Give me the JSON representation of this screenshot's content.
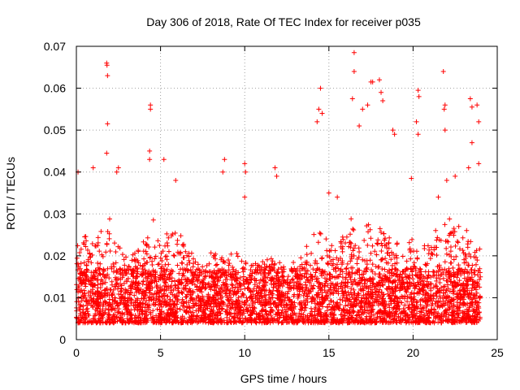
{
  "chart_data": {
    "type": "scatter",
    "title": "Day 306 of 2018, Rate Of TEC Index for receiver p035",
    "xlabel": "GPS time / hours",
    "ylabel": "ROTI / TECUs",
    "xlim": [
      0,
      25
    ],
    "ylim": [
      0,
      0.07
    ],
    "xticks": [
      0,
      5,
      10,
      15,
      20,
      25
    ],
    "yticks": [
      0,
      0.01,
      0.02,
      0.03,
      0.04,
      0.05,
      0.06,
      0.07
    ],
    "grid": true,
    "marker": "+",
    "color": "#ff0000",
    "series": [
      {
        "values_note": "",
        "points": [
          [
            1.8,
            0.066
          ],
          [
            1.82,
            0.0655
          ],
          [
            1.85,
            0.063
          ],
          [
            1.85,
            0.0515
          ],
          [
            1.8,
            0.0445
          ],
          [
            4.4,
            0.056
          ],
          [
            4.4,
            0.055
          ],
          [
            4.35,
            0.045
          ],
          [
            4.35,
            0.043
          ],
          [
            5.2,
            0.043
          ],
          [
            16.5,
            0.0685
          ],
          [
            16.5,
            0.064
          ],
          [
            16.4,
            0.0575
          ],
          [
            14.5,
            0.06
          ],
          [
            14.4,
            0.055
          ],
          [
            14.6,
            0.054
          ],
          [
            14.3,
            0.052
          ],
          [
            17.5,
            0.0615
          ],
          [
            17.6,
            0.0615
          ],
          [
            18.0,
            0.062
          ],
          [
            18.1,
            0.059
          ],
          [
            18.2,
            0.057
          ],
          [
            17.3,
            0.056
          ],
          [
            17.0,
            0.055
          ],
          [
            16.8,
            0.051
          ],
          [
            18.8,
            0.05
          ],
          [
            18.9,
            0.049
          ],
          [
            20.3,
            0.0595
          ],
          [
            20.35,
            0.058
          ],
          [
            20.2,
            0.052
          ],
          [
            20.3,
            0.049
          ],
          [
            21.8,
            0.064
          ],
          [
            21.9,
            0.056
          ],
          [
            21.85,
            0.055
          ],
          [
            21.9,
            0.05
          ],
          [
            23.4,
            0.0575
          ],
          [
            23.5,
            0.0555
          ],
          [
            23.8,
            0.056
          ],
          [
            23.9,
            0.052
          ],
          [
            23.5,
            0.047
          ],
          [
            23.9,
            0.042
          ],
          [
            0.1,
            0.04
          ],
          [
            1.0,
            0.041
          ],
          [
            2.5,
            0.041
          ],
          [
            2.4,
            0.04
          ],
          [
            5.9,
            0.038
          ],
          [
            8.8,
            0.043
          ],
          [
            8.7,
            0.04
          ],
          [
            10.0,
            0.042
          ],
          [
            10.05,
            0.04
          ],
          [
            10.0,
            0.034
          ],
          [
            11.8,
            0.041
          ],
          [
            11.9,
            0.039
          ],
          [
            15.0,
            0.035
          ],
          [
            15.5,
            0.034
          ],
          [
            19.9,
            0.0385
          ],
          [
            21.5,
            0.034
          ],
          [
            22.0,
            0.038
          ],
          [
            22.5,
            0.039
          ],
          [
            23.3,
            0.041
          ]
        ]
      }
    ],
    "density_profile": [
      [
        0.0,
        0.022
      ],
      [
        0.5,
        0.028
      ],
      [
        1.0,
        0.024
      ],
      [
        1.5,
        0.027
      ],
      [
        2.0,
        0.03
      ],
      [
        2.5,
        0.025
      ],
      [
        3.0,
        0.022
      ],
      [
        3.5,
        0.024
      ],
      [
        4.0,
        0.026
      ],
      [
        4.5,
        0.03
      ],
      [
        5.0,
        0.025
      ],
      [
        5.5,
        0.028
      ],
      [
        6.0,
        0.029
      ],
      [
        6.5,
        0.024
      ],
      [
        7.0,
        0.022
      ],
      [
        7.5,
        0.02
      ],
      [
        8.0,
        0.021
      ],
      [
        8.5,
        0.022
      ],
      [
        9.0,
        0.021
      ],
      [
        9.5,
        0.022
      ],
      [
        10.0,
        0.022
      ],
      [
        10.5,
        0.02
      ],
      [
        11.0,
        0.02
      ],
      [
        11.5,
        0.02
      ],
      [
        12.0,
        0.019
      ],
      [
        12.5,
        0.019
      ],
      [
        13.0,
        0.019
      ],
      [
        13.5,
        0.02
      ],
      [
        14.0,
        0.028
      ],
      [
        14.5,
        0.03
      ],
      [
        15.0,
        0.026
      ],
      [
        15.5,
        0.025
      ],
      [
        16.0,
        0.029
      ],
      [
        16.5,
        0.03
      ],
      [
        17.0,
        0.027
      ],
      [
        17.5,
        0.028
      ],
      [
        18.0,
        0.03
      ],
      [
        18.5,
        0.029
      ],
      [
        19.0,
        0.026
      ],
      [
        19.5,
        0.024
      ],
      [
        20.0,
        0.024
      ],
      [
        20.5,
        0.025
      ],
      [
        21.0,
        0.026
      ],
      [
        21.5,
        0.027
      ],
      [
        22.0,
        0.029
      ],
      [
        22.5,
        0.03
      ],
      [
        23.0,
        0.027
      ],
      [
        23.5,
        0.026
      ],
      [
        24.0,
        0.022
      ]
    ],
    "x_range_data": [
      0,
      24
    ],
    "baseline_min": 0.004,
    "baseline_mode": 0.0095
  }
}
